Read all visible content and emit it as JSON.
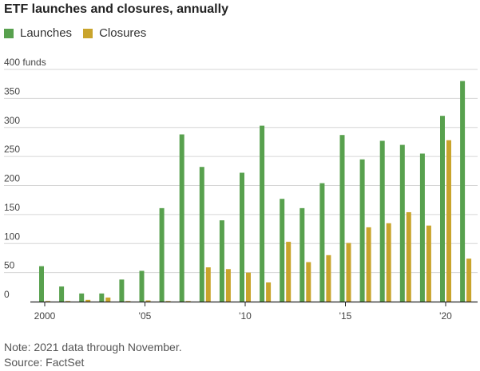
{
  "chart_data": {
    "type": "bar",
    "title": "ETF launches and closures, annually",
    "ylim": [
      0,
      400
    ],
    "ytick_labels": [
      "0",
      "50",
      "100",
      "150",
      "200",
      "250",
      "300",
      "350",
      "400 funds"
    ],
    "x_years": [
      2000,
      2001,
      2002,
      2003,
      2004,
      2005,
      2006,
      2007,
      2008,
      2009,
      2010,
      2011,
      2012,
      2013,
      2014,
      2015,
      2016,
      2017,
      2018,
      2019,
      2020,
      2021
    ],
    "x_tick_labels": [
      {
        "year": 2000,
        "label": "2000"
      },
      {
        "year": 2005,
        "label": "'05"
      },
      {
        "year": 2010,
        "label": "'10"
      },
      {
        "year": 2015,
        "label": "'15"
      },
      {
        "year": 2020,
        "label": "'20"
      }
    ],
    "series": [
      {
        "name": "Launches",
        "color": "#58a14e",
        "values": [
          61,
          26,
          14,
          14,
          38,
          53,
          161,
          288,
          232,
          140,
          222,
          303,
          177,
          161,
          204,
          287,
          245,
          277,
          270,
          255,
          320,
          380
        ]
      },
      {
        "name": "Closures",
        "color": "#c9a42c",
        "values": [
          1,
          1,
          3,
          7,
          1,
          2,
          1,
          1,
          59,
          56,
          50,
          33,
          103,
          68,
          80,
          101,
          128,
          135,
          154,
          131,
          278,
          74
        ]
      }
    ],
    "grid": true,
    "legend": "top-left"
  },
  "note": "Note: 2021 data through November.",
  "source": "Source: FactSet"
}
